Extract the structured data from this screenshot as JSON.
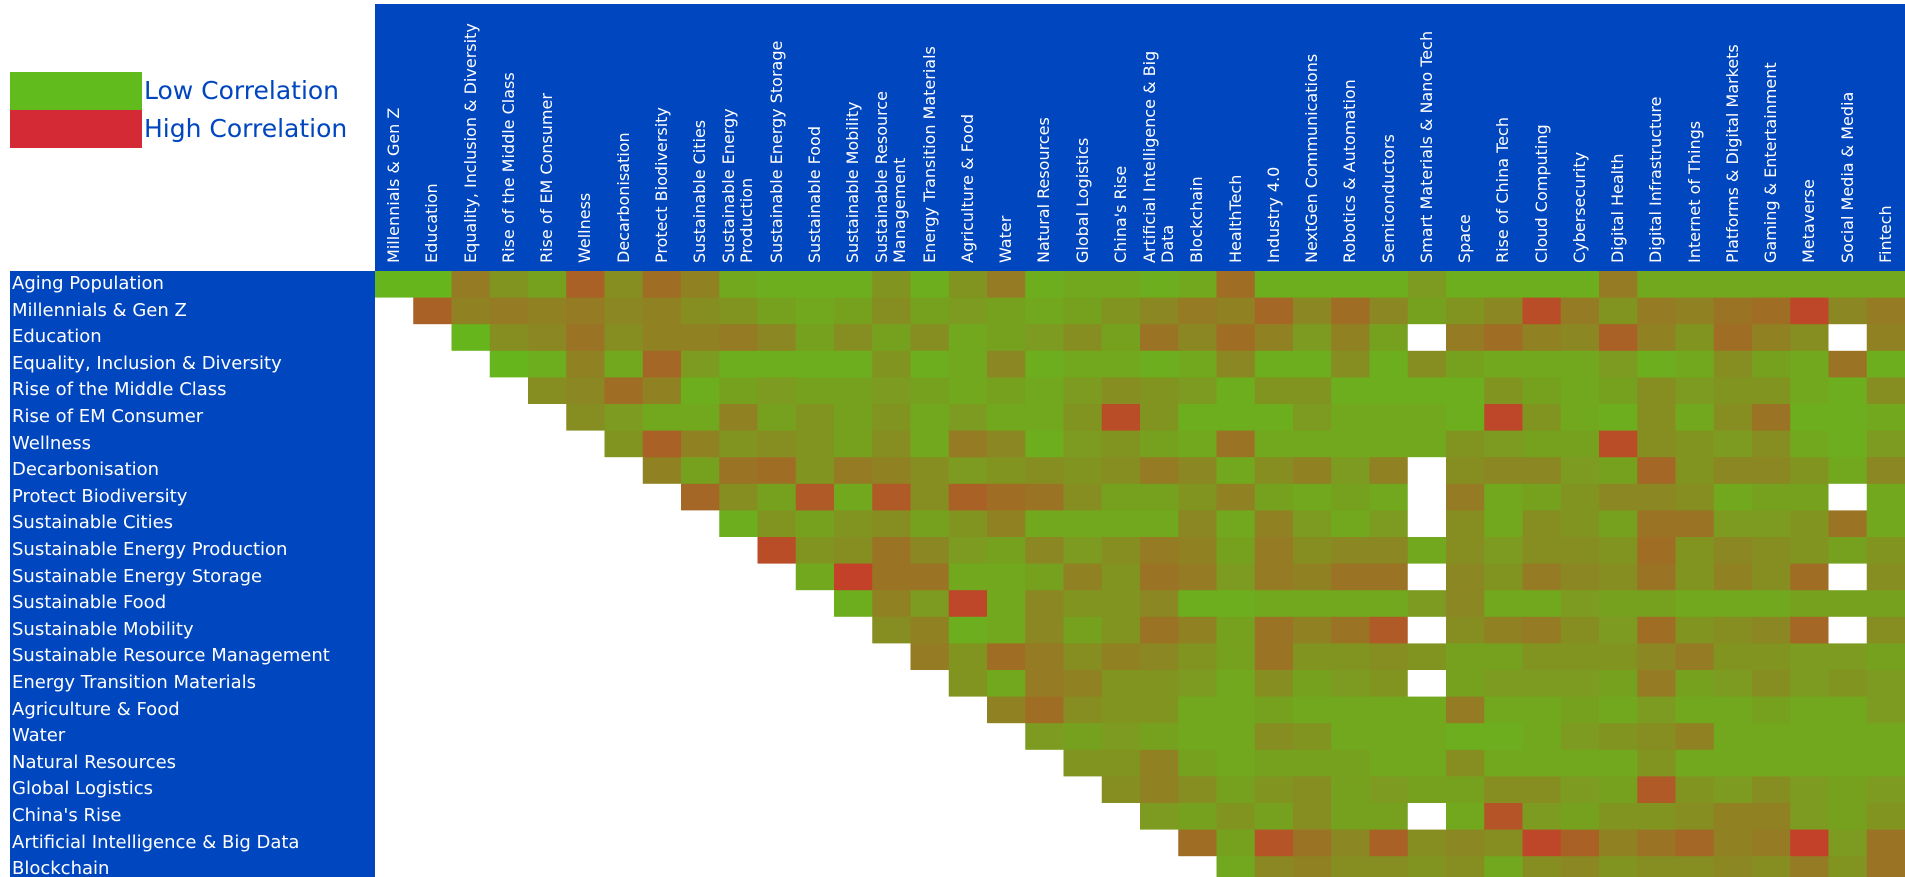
{
  "legend": {
    "items": [
      {
        "label": "Low Correlation",
        "color": "#62bb1c"
      },
      {
        "label": "High Correlation",
        "color": "#d42a36"
      }
    ]
  },
  "chart_data": {
    "type": "heatmap",
    "color_scale": {
      "low": "#62bb1c",
      "high": "#c83a2a",
      "missing": "#ffffff"
    },
    "columns": [
      [
        "Millennials & Gen Z"
      ],
      [
        "Education"
      ],
      [
        "Equality, Inclusion & Diversity"
      ],
      [
        "Rise of the Middle Class"
      ],
      [
        "Rise of EM Consumer"
      ],
      [
        "Wellness"
      ],
      [
        "Decarbonisation"
      ],
      [
        "Protect Biodiversity"
      ],
      [
        "Sustainable Cities"
      ],
      [
        "Sustainable Energy",
        "Production"
      ],
      [
        "Sustainable Energy Storage"
      ],
      [
        "Sustainable Food"
      ],
      [
        "Sustainable Mobility"
      ],
      [
        "Sustainable Resource",
        "Management"
      ],
      [
        "Energy Transition Materials"
      ],
      [
        "Agriculture & Food"
      ],
      [
        "Water"
      ],
      [
        "Natural Resources"
      ],
      [
        "Global Logistics"
      ],
      [
        "China's Rise"
      ],
      [
        "Artificial Intelligence & Big",
        "Data"
      ],
      [
        "Blockchain"
      ],
      [
        "HealthTech"
      ],
      [
        "Industry 4.0"
      ],
      [
        "NextGen Communications"
      ],
      [
        "Robotics & Automation"
      ],
      [
        "Semiconductors"
      ],
      [
        "Smart Materials & Nano Tech"
      ],
      [
        "Space"
      ],
      [
        "Rise of China Tech"
      ],
      [
        "Cloud Computing"
      ],
      [
        "Cybersecurity"
      ],
      [
        "Digital Health"
      ],
      [
        "Digital Infrastructure"
      ],
      [
        "Internet of Things"
      ],
      [
        "Platforms & Digital Markets"
      ],
      [
        "Gaming & Entertainment"
      ],
      [
        "Metaverse"
      ],
      [
        "Social Media & Media"
      ],
      [
        "Fintech"
      ]
    ],
    "rows": [
      "Aging Population",
      "Millennials & Gen Z",
      "Education",
      "Equality, Inclusion & Diversity",
      "Rise of the Middle Class",
      "Rise of EM Consumer",
      "Wellness",
      "Decarbonisation",
      "Protect Biodiversity",
      "Sustainable Cities",
      "Sustainable Energy Production",
      "Sustainable Energy Storage",
      "Sustainable Food",
      "Sustainable Mobility",
      "Sustainable Resource Management",
      "Energy Transition Materials",
      "Agriculture & Food",
      "Water",
      "Natural Resources",
      "Global Logistics",
      "China's Rise",
      "Artificial Intelligence & Big Data",
      "Blockchain"
    ],
    "values": [
      [
        0.05,
        0.05,
        0.5,
        0.3,
        0.2,
        0.7,
        0.35,
        0.6,
        0.45,
        0.15,
        0.1,
        0.1,
        0.1,
        0.3,
        0.1,
        0.3,
        0.5,
        0.1,
        0.15,
        0.15,
        0.1,
        0.15,
        0.6,
        0.1,
        0.1,
        0.1,
        0.1,
        0.25,
        0.1,
        0.1,
        0.1,
        0.1,
        0.5,
        0.15,
        0.15,
        0.15,
        0.15,
        0.15,
        0.15,
        0.15
      ],
      [
        null,
        0.7,
        0.45,
        0.5,
        0.45,
        0.5,
        0.4,
        0.45,
        0.35,
        0.3,
        0.2,
        0.15,
        0.2,
        0.35,
        0.2,
        0.25,
        0.2,
        0.15,
        0.2,
        0.3,
        0.4,
        0.5,
        0.45,
        0.65,
        0.4,
        0.6,
        0.4,
        0.2,
        0.3,
        0.4,
        0.85,
        0.5,
        0.3,
        0.5,
        0.45,
        0.55,
        0.6,
        0.9,
        0.4,
        0.5
      ],
      [
        null,
        null,
        0.05,
        0.35,
        0.4,
        0.55,
        0.35,
        0.45,
        0.45,
        0.5,
        0.4,
        0.2,
        0.35,
        0.2,
        0.35,
        0.15,
        0.2,
        0.25,
        0.35,
        0.2,
        0.55,
        0.4,
        0.6,
        0.45,
        0.25,
        0.45,
        0.2,
        null,
        0.5,
        0.6,
        0.45,
        0.4,
        0.7,
        0.45,
        0.3,
        0.6,
        0.45,
        0.35,
        null,
        0.45
      ],
      [
        null,
        null,
        null,
        0.05,
        0.1,
        0.45,
        0.15,
        0.65,
        0.25,
        0.1,
        0.1,
        0.1,
        0.1,
        0.3,
        0.1,
        0.15,
        0.4,
        0.1,
        0.15,
        0.15,
        0.1,
        0.15,
        0.4,
        0.1,
        0.1,
        0.35,
        0.1,
        0.35,
        0.2,
        0.15,
        0.15,
        0.15,
        0.25,
        0.1,
        0.15,
        0.35,
        0.2,
        0.15,
        0.55,
        0.1
      ],
      [
        null,
        null,
        null,
        null,
        0.35,
        0.4,
        0.6,
        0.45,
        0.1,
        0.2,
        0.25,
        0.2,
        0.2,
        0.25,
        0.2,
        0.15,
        0.2,
        0.15,
        0.25,
        0.35,
        0.3,
        0.25,
        0.1,
        0.3,
        0.3,
        0.1,
        0.1,
        0.1,
        0.1,
        0.3,
        0.2,
        0.15,
        0.2,
        0.35,
        0.25,
        0.3,
        0.3,
        0.15,
        0.1,
        0.35
      ],
      [
        null,
        null,
        null,
        null,
        null,
        0.35,
        0.25,
        0.15,
        0.15,
        0.45,
        0.2,
        0.3,
        0.2,
        0.3,
        0.15,
        0.25,
        0.15,
        0.15,
        0.3,
        0.85,
        0.3,
        0.1,
        0.1,
        0.1,
        0.25,
        0.15,
        0.15,
        0.15,
        0.1,
        0.9,
        0.3,
        0.15,
        0.1,
        0.35,
        0.15,
        0.35,
        0.55,
        0.1,
        0.1,
        0.15
      ],
      [
        null,
        null,
        null,
        null,
        null,
        null,
        0.3,
        0.7,
        0.45,
        0.3,
        0.35,
        0.3,
        0.2,
        0.35,
        0.15,
        0.5,
        0.4,
        0.1,
        0.25,
        0.3,
        0.2,
        0.15,
        0.55,
        0.15,
        0.15,
        0.15,
        0.15,
        0.15,
        0.3,
        0.25,
        0.2,
        0.2,
        0.85,
        0.35,
        0.3,
        0.25,
        0.35,
        0.15,
        0.1,
        0.25
      ],
      [
        null,
        null,
        null,
        null,
        null,
        null,
        null,
        0.45,
        0.2,
        0.55,
        0.6,
        0.3,
        0.5,
        0.45,
        0.35,
        0.25,
        0.3,
        0.35,
        0.3,
        0.35,
        0.5,
        0.4,
        0.15,
        0.35,
        0.45,
        0.25,
        0.45,
        null,
        0.35,
        0.4,
        0.4,
        0.25,
        0.2,
        0.65,
        0.3,
        0.4,
        0.4,
        0.3,
        0.15,
        0.4
      ],
      [
        null,
        null,
        null,
        null,
        null,
        null,
        null,
        null,
        0.65,
        0.35,
        0.2,
        0.75,
        0.15,
        0.75,
        0.35,
        0.7,
        0.6,
        0.55,
        0.35,
        0.2,
        0.2,
        0.3,
        0.45,
        0.2,
        0.15,
        0.2,
        0.15,
        null,
        0.5,
        0.15,
        0.2,
        0.3,
        0.4,
        0.4,
        0.35,
        0.15,
        0.2,
        0.2,
        null,
        0.15
      ],
      [
        null,
        null,
        null,
        null,
        null,
        null,
        null,
        null,
        null,
        0.1,
        0.3,
        0.2,
        0.3,
        0.35,
        0.2,
        0.3,
        0.45,
        0.15,
        0.15,
        0.15,
        0.15,
        0.4,
        0.15,
        0.45,
        0.25,
        0.15,
        0.25,
        null,
        0.35,
        0.15,
        0.35,
        0.3,
        0.2,
        0.55,
        0.55,
        0.25,
        0.25,
        0.3,
        0.55,
        0.15
      ],
      [
        null,
        null,
        null,
        null,
        null,
        null,
        null,
        null,
        null,
        null,
        0.85,
        0.3,
        0.35,
        0.55,
        0.4,
        0.25,
        0.2,
        0.4,
        0.25,
        0.35,
        0.5,
        0.45,
        0.2,
        0.5,
        0.35,
        0.4,
        0.4,
        0.15,
        0.35,
        0.25,
        0.35,
        0.35,
        0.3,
        0.6,
        0.3,
        0.4,
        0.35,
        0.3,
        0.2,
        0.3
      ],
      [
        null,
        null,
        null,
        null,
        null,
        null,
        null,
        null,
        null,
        null,
        null,
        0.15,
        0.95,
        0.55,
        0.55,
        0.15,
        0.15,
        0.2,
        0.45,
        0.3,
        0.55,
        0.5,
        0.25,
        0.5,
        0.45,
        0.55,
        0.55,
        null,
        0.4,
        0.3,
        0.5,
        0.4,
        0.35,
        0.55,
        0.3,
        0.45,
        0.35,
        0.6,
        null,
        0.35
      ],
      [
        null,
        null,
        null,
        null,
        null,
        null,
        null,
        null,
        null,
        null,
        null,
        null,
        0.1,
        0.45,
        0.25,
        0.9,
        0.15,
        0.4,
        0.3,
        0.3,
        0.4,
        0.1,
        0.1,
        0.15,
        0.15,
        0.15,
        0.15,
        0.25,
        0.4,
        0.15,
        0.15,
        0.25,
        0.2,
        0.2,
        0.15,
        0.15,
        0.15,
        0.2,
        0.2,
        0.2
      ],
      [
        null,
        null,
        null,
        null,
        null,
        null,
        null,
        null,
        null,
        null,
        null,
        null,
        null,
        0.35,
        0.45,
        0.1,
        0.15,
        0.4,
        0.2,
        0.3,
        0.55,
        0.45,
        0.2,
        0.55,
        0.45,
        0.55,
        0.75,
        null,
        0.35,
        0.45,
        0.5,
        0.35,
        0.25,
        0.6,
        0.3,
        0.35,
        0.4,
        0.65,
        null,
        0.35
      ],
      [
        null,
        null,
        null,
        null,
        null,
        null,
        null,
        null,
        null,
        null,
        null,
        null,
        null,
        null,
        0.5,
        0.3,
        0.6,
        0.5,
        0.35,
        0.45,
        0.4,
        0.3,
        0.2,
        0.55,
        0.3,
        0.3,
        0.35,
        0.3,
        0.2,
        0.2,
        0.3,
        0.3,
        0.3,
        0.4,
        0.5,
        0.3,
        0.3,
        0.25,
        0.25,
        0.2
      ],
      [
        null,
        null,
        null,
        null,
        null,
        null,
        null,
        null,
        null,
        null,
        null,
        null,
        null,
        null,
        null,
        0.3,
        0.15,
        0.5,
        0.45,
        0.3,
        0.3,
        0.25,
        0.15,
        0.35,
        0.2,
        0.25,
        0.3,
        null,
        0.2,
        0.25,
        0.25,
        0.25,
        0.2,
        0.5,
        0.2,
        0.25,
        0.35,
        0.25,
        0.3,
        0.25
      ],
      [
        null,
        null,
        null,
        null,
        null,
        null,
        null,
        null,
        null,
        null,
        null,
        null,
        null,
        null,
        null,
        null,
        0.45,
        0.6,
        0.35,
        0.3,
        0.3,
        0.15,
        0.15,
        0.2,
        0.15,
        0.15,
        0.15,
        0.15,
        0.5,
        0.15,
        0.15,
        0.2,
        0.15,
        0.25,
        0.15,
        0.15,
        0.2,
        0.15,
        0.15,
        0.25
      ],
      [
        null,
        null,
        null,
        null,
        null,
        null,
        null,
        null,
        null,
        null,
        null,
        null,
        null,
        null,
        null,
        null,
        null,
        0.25,
        0.2,
        0.25,
        0.2,
        0.15,
        0.15,
        0.35,
        0.3,
        0.15,
        0.15,
        0.15,
        0.1,
        0.1,
        0.15,
        0.25,
        0.3,
        0.35,
        0.45,
        0.15,
        0.15,
        0.15,
        0.15,
        0.15
      ],
      [
        null,
        null,
        null,
        null,
        null,
        null,
        null,
        null,
        null,
        null,
        null,
        null,
        null,
        null,
        null,
        null,
        null,
        null,
        0.3,
        0.3,
        0.45,
        0.2,
        0.15,
        0.2,
        0.2,
        0.2,
        0.15,
        0.15,
        0.35,
        0.15,
        0.15,
        0.15,
        0.15,
        0.3,
        0.15,
        0.15,
        0.15,
        0.15,
        0.15,
        0.15
      ],
      [
        null,
        null,
        null,
        null,
        null,
        null,
        null,
        null,
        null,
        null,
        null,
        null,
        null,
        null,
        null,
        null,
        null,
        null,
        null,
        0.35,
        0.45,
        0.35,
        0.2,
        0.3,
        0.35,
        0.2,
        0.25,
        0.2,
        0.2,
        0.35,
        0.35,
        0.25,
        0.2,
        0.75,
        0.3,
        0.25,
        0.35,
        0.25,
        0.2,
        0.25
      ],
      [
        null,
        null,
        null,
        null,
        null,
        null,
        null,
        null,
        null,
        null,
        null,
        null,
        null,
        null,
        null,
        null,
        null,
        null,
        null,
        null,
        0.25,
        0.2,
        0.3,
        0.2,
        0.35,
        0.2,
        0.2,
        null,
        0.15,
        0.8,
        0.25,
        0.2,
        0.3,
        0.3,
        0.35,
        0.45,
        0.45,
        0.25,
        0.2,
        0.3
      ],
      [
        null,
        null,
        null,
        null,
        null,
        null,
        null,
        null,
        null,
        null,
        null,
        null,
        null,
        null,
        null,
        null,
        null,
        null,
        null,
        null,
        null,
        0.6,
        0.2,
        0.8,
        0.55,
        0.4,
        0.7,
        0.35,
        0.4,
        0.35,
        0.9,
        0.7,
        0.45,
        0.55,
        0.65,
        0.45,
        0.5,
        0.95,
        0.25,
        0.55
      ],
      [
        null,
        null,
        null,
        null,
        null,
        null,
        null,
        null,
        null,
        null,
        null,
        null,
        null,
        null,
        null,
        null,
        null,
        null,
        null,
        null,
        null,
        null,
        0.15,
        0.4,
        0.45,
        0.35,
        0.35,
        0.3,
        0.35,
        0.15,
        0.35,
        0.4,
        0.3,
        0.35,
        0.35,
        0.4,
        0.35,
        0.5,
        0.3,
        0.55
      ]
    ]
  }
}
